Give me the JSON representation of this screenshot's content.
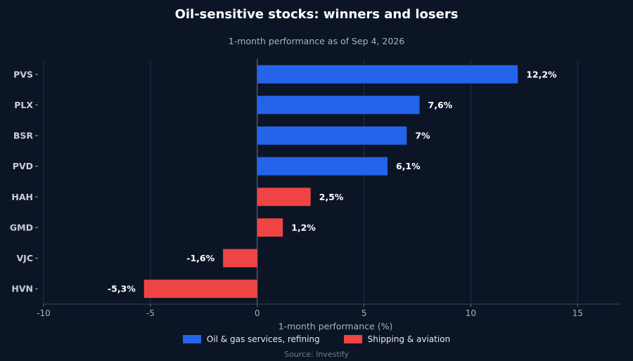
{
  "chart_data": {
    "type": "bar",
    "orientation": "horizontal",
    "title": "Oil-sensitive stocks: winners and losers",
    "subtitle": "1-month performance as of Sep 4, 2026",
    "xlabel": "1-month performance (%)",
    "ylabel": "",
    "xlim": [
      -10,
      17
    ],
    "xticks": [
      -10,
      -5,
      0,
      5,
      10,
      15
    ],
    "xtick_labels": [
      "-10",
      "-5",
      "0",
      "5",
      "10",
      "15"
    ],
    "grid": true,
    "legend_position": "bottom",
    "categories": [
      "PVS",
      "PLX",
      "BSR",
      "PVD",
      "HAH",
      "GMD",
      "VJC",
      "HVN"
    ],
    "values": [
      12.2,
      7.6,
      7,
      6.1,
      2.5,
      1.2,
      -1.6,
      -5.3
    ],
    "value_labels": [
      "12,2%",
      "7,6%",
      "7%",
      "6,1%",
      "2,5%",
      "1,2%",
      "-1,6%",
      "-5,3%"
    ],
    "groups": [
      0,
      0,
      0,
      0,
      1,
      1,
      1,
      1
    ],
    "series": [
      {
        "name": "Oil & gas services, refining",
        "color": "#2563eb"
      },
      {
        "name": "Shipping & aviation",
        "color": "#ef4444"
      }
    ],
    "source": "Source: Investify"
  }
}
